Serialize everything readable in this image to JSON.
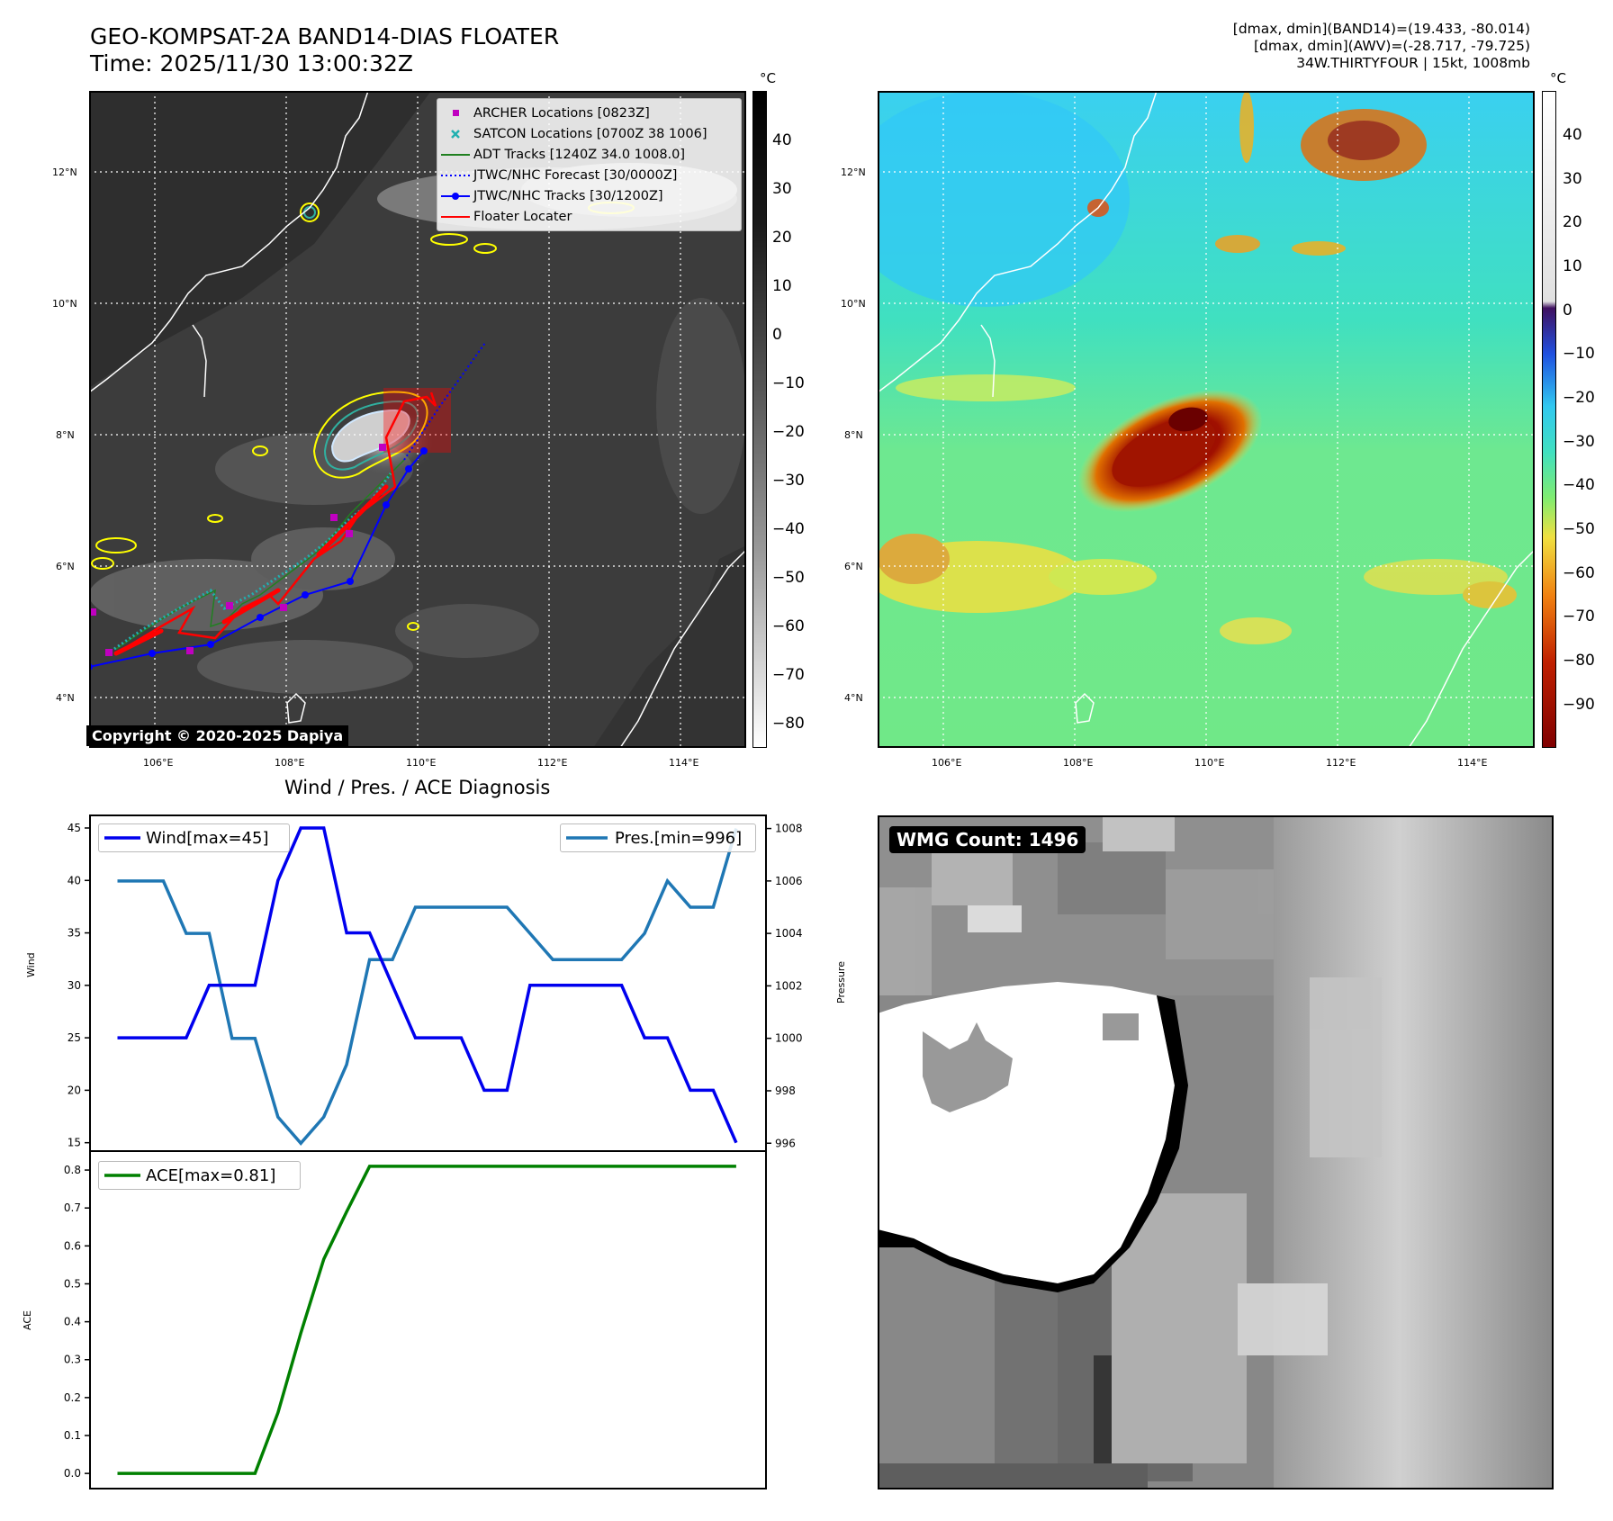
{
  "header": {
    "title_line1": "GEO-KOMPSAT-2A BAND14-DIAS FLOATER",
    "title_line2": "Time: 2025/11/30 13:00:32Z",
    "info_line1": "[dmax, dmin](BAND14)=(19.433, -80.014)",
    "info_line2": "[dmax, dmin](AWV)=(-28.717, -79.725)",
    "info_line3": "34W.THIRTYFOUR | 15kt, 1008mb"
  },
  "map_axes": {
    "lat_labels": [
      "12°N",
      "10°N",
      "8°N",
      "6°N",
      "4°N"
    ],
    "lon_labels": [
      "106°E",
      "108°E",
      "110°E",
      "112°E",
      "114°E"
    ]
  },
  "ir_panel": {
    "legend": [
      {
        "label": "ARCHER Locations [0823Z]",
        "color": "#c000c0",
        "marker": "square"
      },
      {
        "label": "SATCON Locations [0700Z 38 1006]",
        "color": "#20b0b0",
        "marker": "x"
      },
      {
        "label": "ADT Tracks [1240Z 34.0 1008.0]",
        "color": "#208020",
        "marker": "line"
      },
      {
        "label": "JTWC/NHC Forecast [30/0000Z]",
        "color": "#0000ff",
        "marker": "dotted"
      },
      {
        "label": "JTWC/NHC Tracks [30/1200Z]",
        "color": "#0000ff",
        "marker": "line-dot"
      },
      {
        "label": "Floater Locater",
        "color": "#ff0000",
        "marker": "line"
      }
    ],
    "copyright": "Copyright © 2020-2025 Dapiya",
    "colorbar": {
      "unit": "°C",
      "ticks": [
        "40",
        "30",
        "20",
        "10",
        "0",
        "−10",
        "−20",
        "−30",
        "−40",
        "−50",
        "−60",
        "−70",
        "−80"
      ]
    }
  },
  "awv_panel": {
    "colorbar": {
      "unit": "°C",
      "ticks": [
        "40",
        "30",
        "20",
        "10",
        "0",
        "−10",
        "−20",
        "−30",
        "−40",
        "−50",
        "−60",
        "−70",
        "−80",
        "−90"
      ]
    }
  },
  "diag_panel": {
    "title": "Wind / Pres. / ACE Diagnosis",
    "wind_ylabel": "Wind",
    "pres_ylabel": "Pressure",
    "ace_ylabel": "ACE",
    "wind_legend": "Wind[max=45]",
    "pres_legend": "Pres.[min=996]",
    "ace_legend": "ACE[max=0.81]",
    "wind_ticks": [
      "45",
      "40",
      "35",
      "30",
      "25",
      "20",
      "15"
    ],
    "pres_ticks": [
      "1008",
      "1006",
      "1004",
      "1002",
      "1000",
      "998",
      "996"
    ],
    "ace_ticks": [
      "0.8",
      "0.7",
      "0.6",
      "0.5",
      "0.4",
      "0.3",
      "0.2",
      "0.1",
      "0.0"
    ]
  },
  "wmg_panel": {
    "label": "WMG Count: 1496"
  },
  "chart_data": [
    {
      "type": "line",
      "title": "Wind / Pres. / ACE Diagnosis",
      "x": [
        0,
        1,
        2,
        3,
        4,
        5,
        6,
        7,
        8,
        9,
        10,
        11,
        12,
        13,
        14,
        15,
        16,
        17,
        18,
        19,
        20,
        21,
        22,
        23,
        24,
        25,
        26,
        27
      ],
      "series": [
        {
          "name": "Wind[max=45]",
          "axis": "left",
          "color": "#0000ee",
          "values": [
            25,
            25,
            25,
            25,
            30,
            30,
            30,
            40,
            45,
            45,
            35,
            35,
            30,
            25,
            25,
            25,
            20,
            20,
            30,
            30,
            30,
            30,
            30,
            25,
            25,
            20,
            20,
            15
          ]
        },
        {
          "name": "Pres.[min=996]",
          "axis": "right",
          "color": "#1f77b4",
          "values": [
            1006,
            1006,
            1006,
            1004,
            1004,
            1000,
            1000,
            997,
            996,
            997,
            999,
            1003,
            1003,
            1005,
            1005,
            1005,
            1005,
            1005,
            1004,
            1003,
            1003,
            1003,
            1003,
            1004,
            1006,
            1005,
            1005,
            1008
          ]
        }
      ],
      "ylabel": "Wind",
      "ylim": [
        14.2,
        46.2
      ],
      "y2label": "Pressure",
      "y2lim": [
        995.7,
        1008.5
      ],
      "xlim": [
        -1.2,
        28.3
      ]
    },
    {
      "type": "line",
      "x": [
        0,
        1,
        2,
        3,
        4,
        5,
        6,
        7,
        8,
        9,
        10,
        11,
        12,
        13,
        14,
        15,
        16,
        17,
        18,
        19,
        20,
        21,
        22,
        23,
        24,
        25,
        26,
        27
      ],
      "series": [
        {
          "name": "ACE[max=0.81]",
          "color": "#008000",
          "values": [
            0,
            0,
            0,
            0,
            0,
            0,
            0,
            0.16,
            0.37,
            0.565,
            0.69,
            0.81,
            0.81,
            0.81,
            0.81,
            0.81,
            0.81,
            0.81,
            0.81,
            0.81,
            0.81,
            0.81,
            0.81,
            0.81,
            0.81,
            0.81,
            0.81,
            0.81
          ]
        }
      ],
      "ylabel": "ACE",
      "ylim": [
        -0.04,
        0.85
      ],
      "xlim": [
        -1.2,
        28.3
      ]
    }
  ]
}
